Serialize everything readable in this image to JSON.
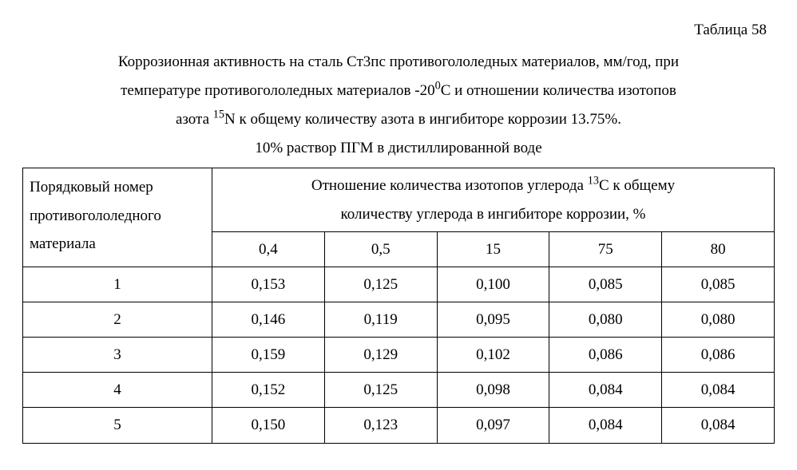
{
  "table_number": "Таблица 58",
  "caption": {
    "line1_pre": "Коррозионная активность на сталь Ст3пс противогололедных материалов, мм/год, при",
    "line2_pre": "температуре противогололедных материалов -20",
    "line2_sup": "0",
    "line2_post": "С и отношении количества изотопов",
    "line3_pre": "азота ",
    "line3_sup": "15",
    "line3_mid": "N  к общему количеству азота в ингибиторе коррозии 13.75%.",
    "line4": "10% раствор ПГМ в дистиллированной воде"
  },
  "table": {
    "row_header_l1": "Порядковый номер",
    "row_header_l2": "противогололедного",
    "row_header_l3": "материала",
    "span_header_pre": "Отношение количества изотопов углерода ",
    "span_header_sup": "13",
    "span_header_post": "С к общему",
    "span_header_l2": "количеству углерода в ингибиторе коррозии, %",
    "col_headers": [
      "0,4",
      "0,5",
      "15",
      "75",
      "80"
    ],
    "rows": [
      {
        "n": "1",
        "v": [
          "0,153",
          "0,125",
          "0,100",
          "0,085",
          "0,085"
        ]
      },
      {
        "n": "2",
        "v": [
          "0,146",
          "0,119",
          "0,095",
          "0,080",
          "0,080"
        ]
      },
      {
        "n": "3",
        "v": [
          "0,159",
          "0,129",
          "0,102",
          "0,086",
          "0,086"
        ]
      },
      {
        "n": "4",
        "v": [
          "0,152",
          "0,125",
          "0,098",
          "0,084",
          "0,084"
        ]
      },
      {
        "n": "5",
        "v": [
          "0,150",
          "0,123",
          "0,097",
          "0,084",
          "0,084"
        ]
      }
    ],
    "border_color": "#000000",
    "background_color": "#ffffff",
    "text_color": "#000000",
    "font_family": "Times New Roman",
    "font_size_pt": 14
  }
}
